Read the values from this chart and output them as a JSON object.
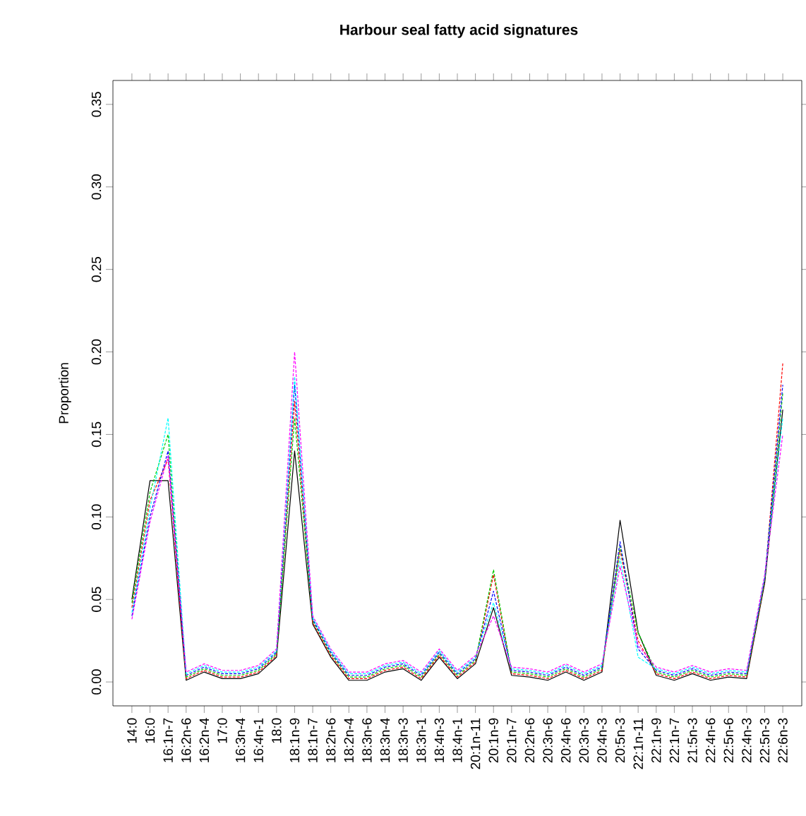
{
  "chart_data": {
    "type": "line",
    "title": "Harbour seal fatty acid signatures",
    "ylabel": "Proportion",
    "categories": [
      "14:0",
      "16:0",
      "16:1n-7",
      "16:2n-6",
      "16:2n-4",
      "17:0",
      "16:3n-4",
      "16:4n-1",
      "18:0",
      "18:1n-9",
      "18:1n-7",
      "18:2n-6",
      "18:2n-4",
      "18:3n-6",
      "18:3n-4",
      "18:3n-3",
      "18:3n-1",
      "18:4n-3",
      "18:4n-1",
      "20:1n-11",
      "20:1n-9",
      "20:1n-7",
      "20:2n-6",
      "20:3n-6",
      "20:4n-6",
      "20:3n-3",
      "20:4n-3",
      "20:5n-3",
      "22:1n-11",
      "22:1n-9",
      "22:1n-7",
      "21:5n-3",
      "22:4n-6",
      "22:5n-6",
      "22:4n-3",
      "22:5n-3",
      "22:6n-3"
    ],
    "series": [
      {
        "color": "#000000",
        "line_style": "solid",
        "values": [
          0.05,
          0.122,
          0.122,
          0.001,
          0.006,
          0.002,
          0.002,
          0.005,
          0.015,
          0.14,
          0.035,
          0.015,
          0.001,
          0.001,
          0.006,
          0.008,
          0.001,
          0.015,
          0.002,
          0.011,
          0.045,
          0.004,
          0.003,
          0.001,
          0.006,
          0.001,
          0.006,
          0.098,
          0.03,
          0.004,
          0.001,
          0.005,
          0.001,
          0.003,
          0.002,
          0.06,
          0.165
        ]
      },
      {
        "color": "#ff0000",
        "line_style": "dashed",
        "values": [
          0.045,
          0.11,
          0.135,
          0.002,
          0.007,
          0.003,
          0.003,
          0.006,
          0.016,
          0.17,
          0.036,
          0.016,
          0.002,
          0.002,
          0.007,
          0.009,
          0.002,
          0.016,
          0.003,
          0.012,
          0.065,
          0.005,
          0.004,
          0.002,
          0.007,
          0.002,
          0.007,
          0.08,
          0.025,
          0.005,
          0.002,
          0.006,
          0.002,
          0.004,
          0.003,
          0.061,
          0.193
        ]
      },
      {
        "color": "#00cd00",
        "line_style": "dashed",
        "values": [
          0.048,
          0.115,
          0.15,
          0.003,
          0.008,
          0.004,
          0.004,
          0.007,
          0.017,
          0.16,
          0.037,
          0.017,
          0.003,
          0.003,
          0.008,
          0.01,
          0.003,
          0.017,
          0.004,
          0.013,
          0.068,
          0.006,
          0.005,
          0.003,
          0.008,
          0.003,
          0.008,
          0.082,
          0.03,
          0.006,
          0.003,
          0.007,
          0.003,
          0.005,
          0.004,
          0.062,
          0.175
        ]
      },
      {
        "color": "#0000ff",
        "line_style": "dashed",
        "values": [
          0.04,
          0.1,
          0.14,
          0.004,
          0.009,
          0.005,
          0.005,
          0.008,
          0.018,
          0.18,
          0.038,
          0.018,
          0.004,
          0.004,
          0.009,
          0.011,
          0.004,
          0.018,
          0.005,
          0.014,
          0.055,
          0.007,
          0.006,
          0.004,
          0.009,
          0.004,
          0.009,
          0.085,
          0.02,
          0.007,
          0.004,
          0.008,
          0.004,
          0.006,
          0.005,
          0.063,
          0.18
        ]
      },
      {
        "color": "#00ffff",
        "line_style": "dashed",
        "values": [
          0.042,
          0.105,
          0.16,
          0.005,
          0.01,
          0.006,
          0.006,
          0.009,
          0.019,
          0.185,
          0.039,
          0.019,
          0.005,
          0.005,
          0.01,
          0.012,
          0.005,
          0.019,
          0.006,
          0.015,
          0.048,
          0.008,
          0.007,
          0.005,
          0.01,
          0.005,
          0.01,
          0.075,
          0.015,
          0.008,
          0.005,
          0.009,
          0.005,
          0.007,
          0.006,
          0.064,
          0.16
        ]
      },
      {
        "color": "#ff00ff",
        "line_style": "dashed",
        "values": [
          0.038,
          0.097,
          0.137,
          0.006,
          0.011,
          0.007,
          0.007,
          0.01,
          0.02,
          0.2,
          0.04,
          0.02,
          0.006,
          0.006,
          0.011,
          0.013,
          0.006,
          0.02,
          0.007,
          0.016,
          0.04,
          0.009,
          0.008,
          0.006,
          0.011,
          0.006,
          0.011,
          0.07,
          0.022,
          0.009,
          0.006,
          0.01,
          0.006,
          0.008,
          0.007,
          0.065,
          0.15
        ]
      }
    ],
    "ylim": [
      -0.0145,
      0.3645
    ],
    "yticks": [
      {
        "value": 0,
        "label": "0.00"
      },
      {
        "value": 0.05,
        "label": "0.05"
      },
      {
        "value": 0.1,
        "label": "0.10"
      },
      {
        "value": 0.15,
        "label": "0.15"
      },
      {
        "value": 0.2,
        "label": "0.20"
      },
      {
        "value": 0.25,
        "label": "0.25"
      },
      {
        "value": 0.3,
        "label": "0.30"
      },
      {
        "value": 0.35,
        "label": "0.35"
      }
    ],
    "grid": false,
    "marker": "none"
  }
}
